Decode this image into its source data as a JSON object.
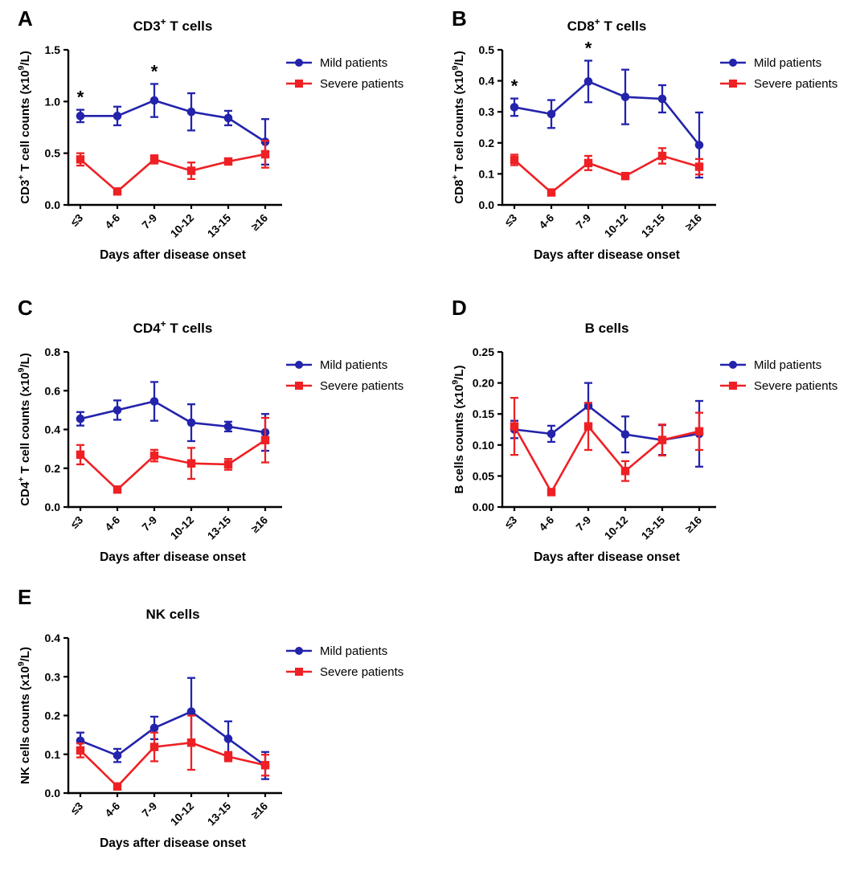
{
  "figure": {
    "background": "#ffffff"
  },
  "colors": {
    "mild": "#2323AC",
    "severe": "#EE2024",
    "axis": "#000000",
    "text": "#000000"
  },
  "legend": {
    "items": [
      {
        "label": "Mild patients",
        "series": "mild",
        "marker": "circle"
      },
      {
        "label": "Severe patients",
        "series": "severe",
        "marker": "square"
      }
    ],
    "position": "right-top"
  },
  "chart_data": [
    {
      "panel_label": "A",
      "type": "line",
      "title": "CD3+ T cells",
      "title_segments": [
        {
          "t": "CD3"
        },
        {
          "t": "+",
          "sup": true
        },
        {
          "t": " T cells"
        }
      ],
      "ylabel": "CD3+ T cell counts (x10^9/L)",
      "ylabel_segments": [
        {
          "t": "CD3"
        },
        {
          "t": "+",
          "sup": true
        },
        {
          "t": " T cell counts (x10"
        },
        {
          "t": "9",
          "sup": true
        },
        {
          "t": "/L)"
        }
      ],
      "xlabel": "Days after disease onset",
      "categories": [
        "≤3",
        "4-6",
        "7-9",
        "10-12",
        "13-15",
        "≥16"
      ],
      "ylim": [
        0,
        1.5
      ],
      "yticks": [
        0,
        0.5,
        1,
        1.5
      ],
      "ytick_decimals": 1,
      "grid": false,
      "series": [
        {
          "name": "Mild patients",
          "color_key": "mild",
          "marker": "circle",
          "values": [
            0.86,
            0.86,
            1.01,
            0.9,
            0.84,
            0.61
          ],
          "errors": [
            0.06,
            0.09,
            0.16,
            0.18,
            0.07,
            0.22
          ]
        },
        {
          "name": "Severe patients",
          "color_key": "severe",
          "marker": "square",
          "values": [
            0.44,
            0.13,
            0.44,
            0.33,
            0.42,
            0.49
          ],
          "errors": [
            0.06,
            0.02,
            0.04,
            0.08,
            0.03,
            0.13
          ]
        }
      ],
      "significance": [
        {
          "category_index": 0,
          "symbol": "*"
        },
        {
          "category_index": 2,
          "symbol": "*"
        }
      ]
    },
    {
      "panel_label": "B",
      "type": "line",
      "title": "CD8+ T cells",
      "title_segments": [
        {
          "t": "CD8"
        },
        {
          "t": "+",
          "sup": true
        },
        {
          "t": " T cells"
        }
      ],
      "ylabel": "CD8+ T cell counts (x10^9/L)",
      "ylabel_segments": [
        {
          "t": "CD8"
        },
        {
          "t": "+",
          "sup": true
        },
        {
          "t": " T cell counts (x10"
        },
        {
          "t": "9",
          "sup": true
        },
        {
          "t": "/L)"
        }
      ],
      "xlabel": "Days after disease onset",
      "categories": [
        "≤3",
        "4-6",
        "7-9",
        "10-12",
        "13-15",
        "≥16"
      ],
      "ylim": [
        0,
        0.5
      ],
      "yticks": [
        0,
        0.1,
        0.2,
        0.3,
        0.4,
        0.5
      ],
      "ytick_decimals": 1,
      "grid": false,
      "series": [
        {
          "name": "Mild patients",
          "color_key": "mild",
          "marker": "circle",
          "values": [
            0.315,
            0.293,
            0.398,
            0.348,
            0.342,
            0.193
          ],
          "errors": [
            0.028,
            0.045,
            0.067,
            0.088,
            0.044,
            0.105
          ]
        },
        {
          "name": "Severe patients",
          "color_key": "severe",
          "marker": "square",
          "values": [
            0.145,
            0.04,
            0.135,
            0.093,
            0.158,
            0.123
          ],
          "errors": [
            0.017,
            0.008,
            0.023,
            0.01,
            0.025,
            0.025
          ]
        }
      ],
      "significance": [
        {
          "category_index": 0,
          "symbol": "*"
        },
        {
          "category_index": 2,
          "symbol": "*"
        }
      ]
    },
    {
      "panel_label": "C",
      "type": "line",
      "title": "CD4+ T cells",
      "title_segments": [
        {
          "t": "CD4"
        },
        {
          "t": "+",
          "sup": true
        },
        {
          "t": " T cells"
        }
      ],
      "ylabel": "CD4+ T cell counts (x10^9/L)",
      "ylabel_segments": [
        {
          "t": "CD4"
        },
        {
          "t": "+",
          "sup": true
        },
        {
          "t": " T cell counts (x10"
        },
        {
          "t": "9",
          "sup": true
        },
        {
          "t": "/L)"
        }
      ],
      "xlabel": "Days after disease onset",
      "categories": [
        "≤3",
        "4-6",
        "7-9",
        "10-12",
        "13-15",
        "≥16"
      ],
      "ylim": [
        0,
        0.8
      ],
      "yticks": [
        0,
        0.2,
        0.4,
        0.6,
        0.8
      ],
      "ytick_decimals": 1,
      "grid": false,
      "series": [
        {
          "name": "Mild patients",
          "color_key": "mild",
          "marker": "circle",
          "values": [
            0.455,
            0.5,
            0.545,
            0.435,
            0.415,
            0.385
          ],
          "errors": [
            0.035,
            0.05,
            0.1,
            0.095,
            0.025,
            0.095
          ]
        },
        {
          "name": "Severe patients",
          "color_key": "severe",
          "marker": "square",
          "values": [
            0.27,
            0.09,
            0.265,
            0.225,
            0.22,
            0.345
          ],
          "errors": [
            0.05,
            0.012,
            0.03,
            0.08,
            0.028,
            0.115
          ]
        }
      ],
      "significance": []
    },
    {
      "panel_label": "D",
      "type": "line",
      "title": "B cells",
      "title_segments": [
        {
          "t": "B cells"
        }
      ],
      "ylabel": "B cells counts (x10^9/L)",
      "ylabel_segments": [
        {
          "t": "B cells counts (x10"
        },
        {
          "t": "9",
          "sup": true
        },
        {
          "t": "/L)"
        }
      ],
      "xlabel": "Days after disease onset",
      "categories": [
        "≤3",
        "4-6",
        "7-9",
        "10-12",
        "13-15",
        "≥16"
      ],
      "ylim": [
        0,
        0.25
      ],
      "yticks": [
        0,
        0.05,
        0.1,
        0.15,
        0.2,
        0.25
      ],
      "ytick_decimals": 2,
      "grid": false,
      "series": [
        {
          "name": "Mild patients",
          "color_key": "mild",
          "marker": "circle",
          "values": [
            0.125,
            0.118,
            0.163,
            0.117,
            0.108,
            0.118
          ],
          "errors": [
            0.014,
            0.013,
            0.037,
            0.029,
            0.024,
            0.053
          ]
        },
        {
          "name": "Severe patients",
          "color_key": "severe",
          "marker": "square",
          "values": [
            0.13,
            0.024,
            0.13,
            0.058,
            0.108,
            0.122
          ],
          "errors": [
            0.046,
            0.005,
            0.038,
            0.016,
            0.025,
            0.03
          ]
        }
      ],
      "significance": []
    },
    {
      "panel_label": "E",
      "type": "line",
      "title": "NK cells",
      "title_segments": [
        {
          "t": "NK cells"
        }
      ],
      "ylabel": "NK cells counts (x10^9/L)",
      "ylabel_segments": [
        {
          "t": "NK cells counts (x10"
        },
        {
          "t": "9",
          "sup": true
        },
        {
          "t": "/L)"
        }
      ],
      "xlabel": "Days after disease onset",
      "categories": [
        "≤3",
        "4-6",
        "7-9",
        "10-12",
        "13-15",
        "≥16"
      ],
      "ylim": [
        0,
        0.4
      ],
      "yticks": [
        0,
        0.1,
        0.2,
        0.3,
        0.4
      ],
      "ytick_decimals": 1,
      "grid": false,
      "series": [
        {
          "name": "Mild patients",
          "color_key": "mild",
          "marker": "circle",
          "values": [
            0.135,
            0.097,
            0.168,
            0.21,
            0.14,
            0.071
          ],
          "errors": [
            0.021,
            0.017,
            0.029,
            0.087,
            0.045,
            0.035
          ]
        },
        {
          "name": "Severe patients",
          "color_key": "severe",
          "marker": "square",
          "values": [
            0.11,
            0.017,
            0.119,
            0.13,
            0.094,
            0.072
          ],
          "errors": [
            0.018,
            0.008,
            0.037,
            0.07,
            0.012,
            0.027
          ]
        }
      ],
      "significance": []
    }
  ]
}
